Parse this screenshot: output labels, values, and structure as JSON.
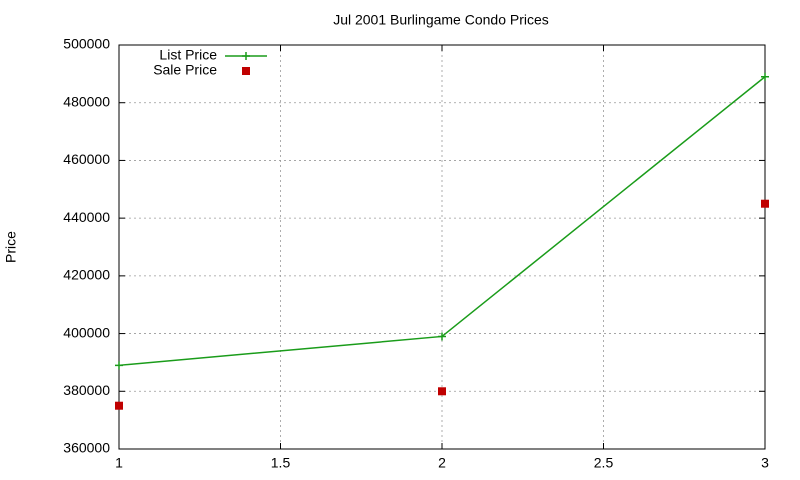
{
  "chart_data": {
    "type": "line",
    "title": "Jul 2001 Burlingame Condo Prices",
    "y_label": "Price",
    "x": [
      1,
      2,
      3
    ],
    "series": [
      {
        "name": "List Price",
        "color": "#1a9c1a",
        "style": "linespoints",
        "values": [
          389000,
          399000,
          489000
        ]
      },
      {
        "name": "Sale Price",
        "color": "#c00000",
        "style": "points",
        "values": [
          375000,
          380000,
          445000
        ]
      }
    ],
    "xlim": [
      1,
      3
    ],
    "xticks": [
      1,
      1.5,
      2,
      2.5,
      3
    ],
    "ylim": [
      360000,
      500000
    ],
    "yticks": [
      360000,
      380000,
      400000,
      420000,
      440000,
      460000,
      480000,
      500000
    ],
    "grid": true,
    "legend": "top-left"
  }
}
